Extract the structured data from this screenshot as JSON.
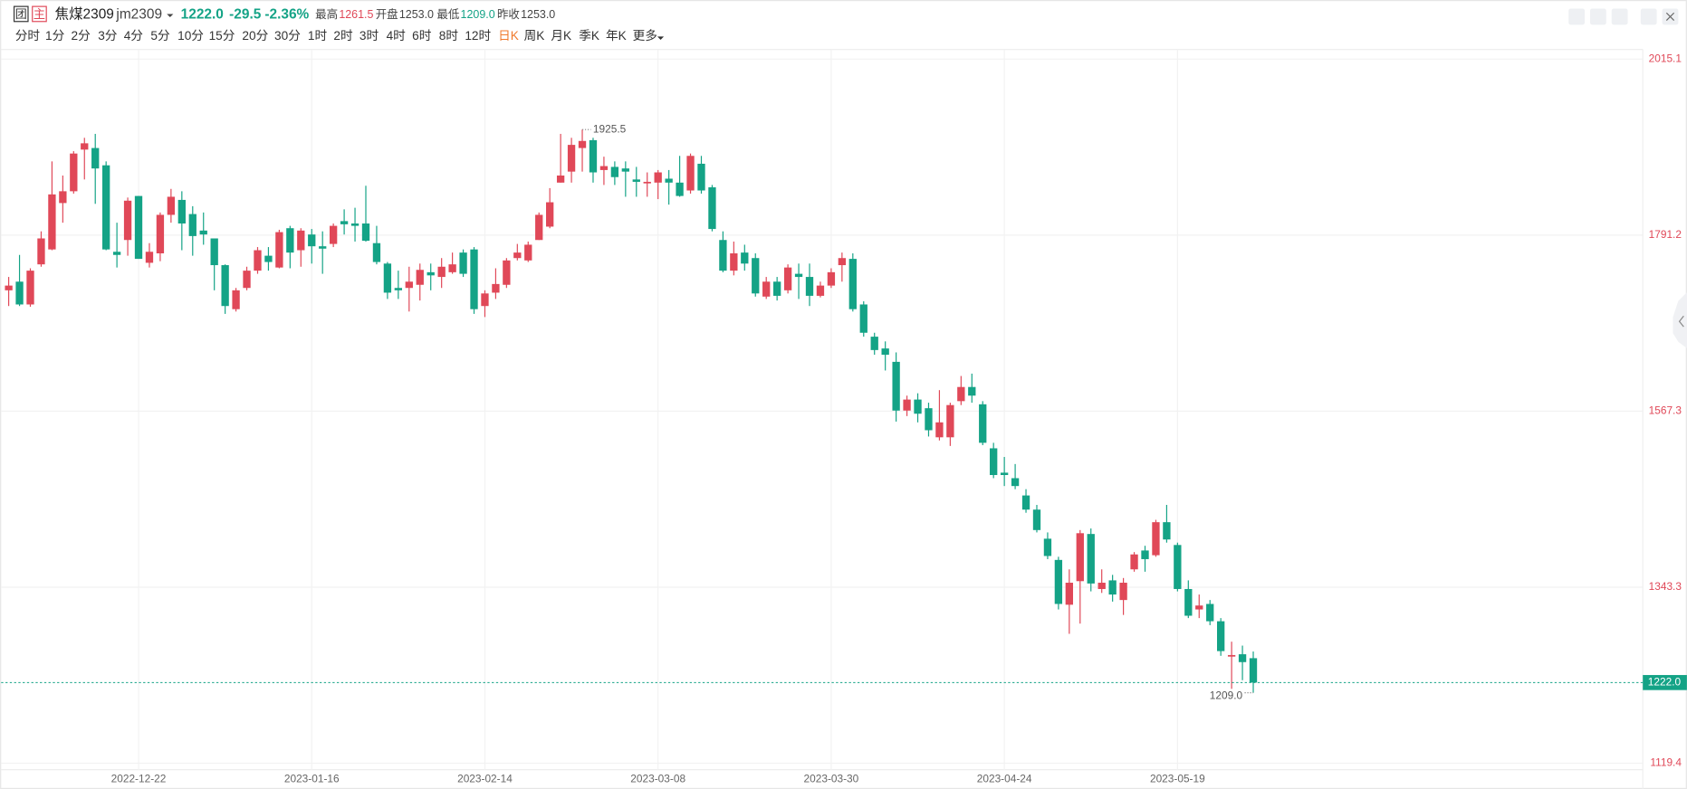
{
  "header": {
    "icons": [
      "团",
      "主"
    ],
    "name": "焦煤2309",
    "code": "jm2309",
    "last": "1222.0",
    "change": "-29.5",
    "change_pct": "-2.36%",
    "stats": [
      {
        "label": "最高",
        "value": "1261.5"
      },
      {
        "label": "开盘",
        "value": "1253.0"
      },
      {
        "label": "最低",
        "value": "1209.0"
      },
      {
        "label": "昨收",
        "value": "1253.0"
      }
    ]
  },
  "toolbar": {
    "intervals": [
      "分时",
      "1分",
      "2分",
      "3分",
      "4分",
      "5分",
      "10分",
      "15分",
      "20分",
      "30分",
      "1时",
      "2时",
      "3时",
      "4时",
      "6时",
      "8时",
      "12时",
      "日K",
      "周K",
      "月K",
      "季K",
      "年K",
      "更多"
    ],
    "active": 17
  },
  "chart_data": {
    "type": "candlestick",
    "categories": [
      null,
      null,
      null,
      null,
      null,
      null,
      null,
      null,
      null,
      null,
      null,
      null,
      "2022-12-22",
      null,
      null,
      null,
      null,
      null,
      null,
      null,
      null,
      null,
      null,
      null,
      null,
      null,
      null,
      null,
      "2023-01-16",
      null,
      null,
      null,
      null,
      null,
      null,
      null,
      null,
      null,
      null,
      null,
      null,
      null,
      null,
      null,
      "2023-02-14",
      null,
      null,
      null,
      null,
      null,
      null,
      null,
      null,
      null,
      null,
      null,
      null,
      null,
      null,
      null,
      "2023-03-08",
      null,
      null,
      null,
      null,
      null,
      null,
      null,
      null,
      null,
      null,
      null,
      null,
      null,
      null,
      null,
      "2023-03-30",
      null,
      null,
      null,
      null,
      null,
      null,
      null,
      null,
      null,
      null,
      null,
      null,
      null,
      null,
      null,
      "2023-04-24",
      null,
      null,
      null,
      null,
      null,
      null,
      null,
      null,
      null,
      null,
      null,
      null,
      null,
      null,
      null,
      "2023-05-19",
      null,
      null,
      null,
      null,
      null,
      null,
      null
    ],
    "open": [
      1721,
      1732,
      1703,
      1754,
      1773,
      1832,
      1847,
      1900,
      1902,
      1880,
      1770,
      1785,
      1841,
      1756,
      1768,
      1817,
      1836,
      1818,
      1797,
      1787,
      1753,
      1697,
      1724,
      1746,
      1765,
      1750,
      1800,
      1772,
      1792,
      1777,
      1780,
      1809,
      1806,
      1806,
      1781,
      1755,
      1724,
      1724,
      1728,
      1744,
      1738,
      1744,
      1769,
      1773,
      1701,
      1718,
      1728,
      1762,
      1759,
      1785,
      1802,
      1858,
      1872,
      1902,
      1912,
      1874,
      1878,
      1876,
      1862,
      1857,
      1858,
      1863,
      1858,
      1848,
      1882,
      1852,
      1785,
      1746,
      1769,
      1762,
      1713,
      1732,
      1721,
      1742,
      1738,
      1714,
      1727,
      1753,
      1761,
      1703,
      1662,
      1647,
      1630,
      1568,
      1582,
      1571,
      1534,
      1534,
      1580,
      1598,
      1576,
      1520,
      1489,
      1482,
      1460,
      1442,
      1405,
      1378,
      1321,
      1351,
      1411,
      1341,
      1352,
      1327,
      1366,
      1390,
      1384,
      1426,
      1397,
      1341,
      1315,
      1322,
      1300,
      1255,
      1258,
      1253.0
    ],
    "high": [
      1738,
      1766,
      1749,
      1796,
      1885,
      1867,
      1898,
      1915,
      1920,
      1885,
      1807,
      1839,
      1841,
      1781,
      1820,
      1850,
      1847,
      1828,
      1820,
      1787,
      1754,
      1724,
      1751,
      1776,
      1776,
      1798,
      1803,
      1800,
      1799,
      1796,
      1806,
      1824,
      1826,
      1854,
      1803,
      1757,
      1746,
      1751,
      1755,
      1755,
      1762,
      1769,
      1773,
      1776,
      1721,
      1749,
      1762,
      1780,
      1783,
      1820,
      1851,
      1920,
      1915,
      1925.5,
      1915,
      1891,
      1885,
      1885,
      1878,
      1871,
      1874,
      1874,
      1892,
      1895,
      1892,
      1855,
      1796,
      1783,
      1779,
      1768,
      1738,
      1738,
      1754,
      1755,
      1755,
      1732,
      1749,
      1769,
      1768,
      1707,
      1667,
      1656,
      1642,
      1587,
      1590,
      1578,
      1594,
      1578,
      1612,
      1615,
      1580,
      1527,
      1509,
      1500,
      1468,
      1448,
      1413,
      1382,
      1366,
      1416,
      1418,
      1366,
      1359,
      1355,
      1388,
      1396,
      1429,
      1448,
      1400,
      1352,
      1334,
      1327,
      1304,
      1274,
      1269,
      1261.5
    ],
    "low": [
      1701,
      1701,
      1700,
      1751,
      1772,
      1807,
      1844,
      1862,
      1831,
      1772,
      1750,
      1765,
      1761,
      1750,
      1758,
      1807,
      1772,
      1765,
      1779,
      1721,
      1691,
      1694,
      1721,
      1742,
      1746,
      1749,
      1749,
      1751,
      1755,
      1742,
      1776,
      1792,
      1783,
      1783,
      1754,
      1710,
      1710,
      1694,
      1708,
      1721,
      1724,
      1742,
      1738,
      1691,
      1687,
      1710,
      1724,
      1759,
      1757,
      1785,
      1800,
      1858,
      1858,
      1872,
      1858,
      1855,
      1855,
      1840,
      1840,
      1840,
      1837,
      1830,
      1840,
      1844,
      1844,
      1796,
      1744,
      1740,
      1746,
      1713,
      1710,
      1708,
      1717,
      1710,
      1701,
      1712,
      1724,
      1732,
      1694,
      1662,
      1639,
      1619,
      1554,
      1561,
      1553,
      1535,
      1530,
      1523,
      1575,
      1578,
      1524,
      1482,
      1472,
      1468,
      1438,
      1413,
      1379,
      1315,
      1284,
      1297,
      1338,
      1336,
      1325,
      1308,
      1363,
      1363,
      1382,
      1400,
      1338,
      1304,
      1304,
      1295,
      1256,
      1214,
      1225,
      1209.0
    ],
    "close": [
      1727,
      1703,
      1746,
      1787,
      1843,
      1847,
      1895,
      1908,
      1876,
      1773,
      1766,
      1835,
      1761,
      1770,
      1817,
      1840,
      1806,
      1790,
      1792,
      1753,
      1701,
      1721,
      1746,
      1772,
      1757,
      1795,
      1769,
      1797,
      1777,
      1774,
      1803,
      1805,
      1803,
      1784,
      1757,
      1718,
      1721,
      1732,
      1747,
      1740,
      1751,
      1754,
      1742,
      1697,
      1717,
      1729,
      1759,
      1769,
      1779,
      1817,
      1833,
      1867,
      1906,
      1911,
      1871,
      1879,
      1865,
      1872,
      1859,
      1859,
      1871,
      1858,
      1841,
      1892,
      1848,
      1799,
      1746,
      1768,
      1755,
      1717,
      1732,
      1714,
      1750,
      1738,
      1714,
      1727,
      1744,
      1762,
      1697,
      1667,
      1645,
      1639,
      1568,
      1582,
      1564,
      1543,
      1553,
      1575,
      1598,
      1587,
      1527,
      1486,
      1486,
      1472,
      1442,
      1416,
      1383,
      1322,
      1349,
      1412,
      1348,
      1349,
      1334,
      1349,
      1385,
      1379,
      1426,
      1404,
      1341,
      1307,
      1320,
      1300,
      1262,
      1257,
      1248,
      1222.0
    ],
    "up_color": "#e04858",
    "down_color": "#14a386",
    "ylim": [
      1111.2,
      2027.4
    ],
    "yticks": [
      1119.4,
      1343.3,
      1567.3,
      1791.2,
      2015.1
    ],
    "grid": true,
    "last_price": {
      "value": 1222.0,
      "label": "1222.0"
    },
    "max_label": 1925.5,
    "min_label": {
      "value": 1209.0,
      "label": "1209.0"
    }
  }
}
